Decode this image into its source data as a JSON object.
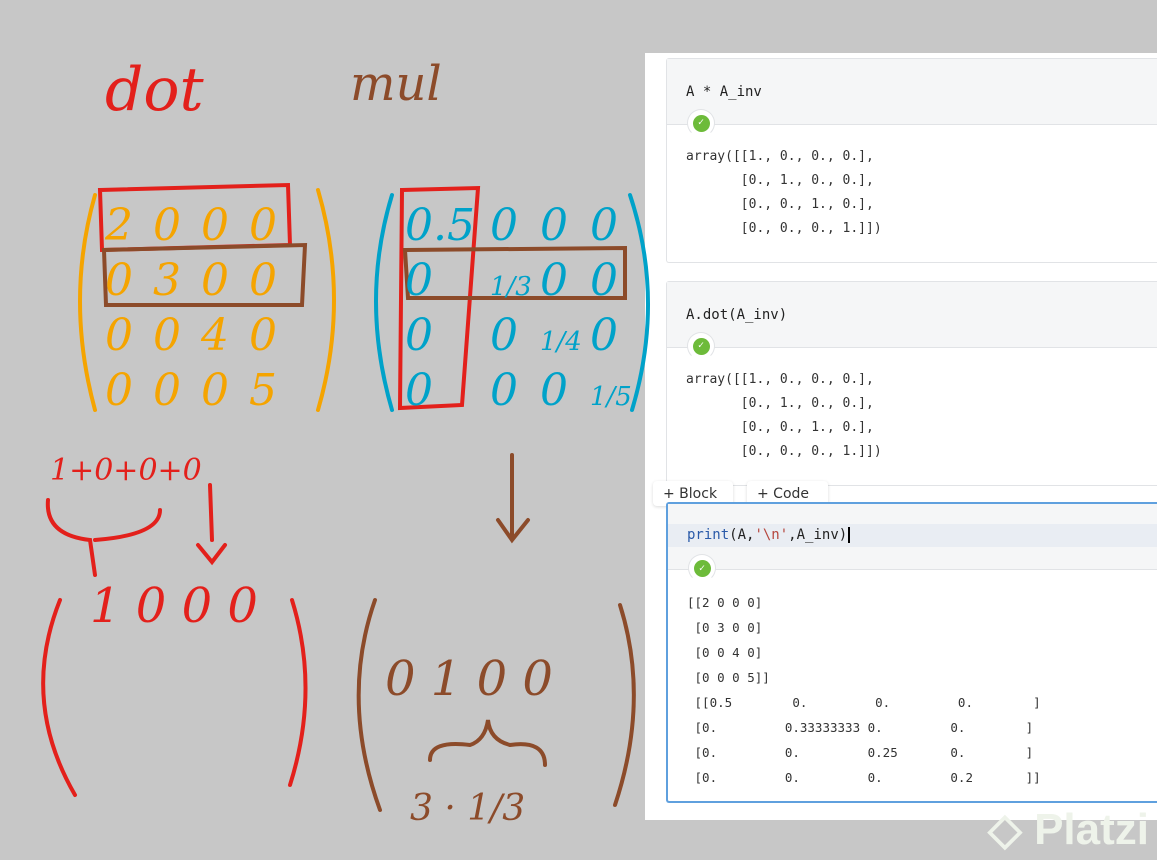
{
  "colors": {
    "red": "#e3201b",
    "orange": "#f5a400",
    "blue": "#00a2c9",
    "brown": "#8c4b2a",
    "check": "#6dbb3a",
    "active_border": "#5fa0de"
  },
  "handwriting": {
    "dot": "dot",
    "mul": "mul",
    "matrix_a": [
      [
        "2",
        "0",
        "0",
        "0"
      ],
      [
        "0",
        "3",
        "0",
        "0"
      ],
      [
        "0",
        "0",
        "4",
        "0"
      ],
      [
        "0",
        "0",
        "0",
        "5"
      ]
    ],
    "matrix_inv": [
      [
        "0.5",
        "0",
        "0",
        "0"
      ],
      [
        "0",
        "1/3",
        "0",
        "0"
      ],
      [
        "0",
        "0",
        "1/4",
        "0"
      ],
      [
        "0",
        "0",
        "0",
        "1/5"
      ]
    ],
    "sum": "1+0+0+0",
    "result_dot": "1 0 0 0",
    "result_mul": "0 1 0 0",
    "result_mul_note": "3 · 1/3"
  },
  "notebook": {
    "cells": [
      {
        "code": "A * A_inv",
        "output": "array([[1., 0., 0., 0.],\n       [0., 1., 0., 0.],\n       [0., 0., 1., 0.],\n       [0., 0., 0., 1.]])"
      },
      {
        "code": "A.dot(A_inv)",
        "output": "array([[1., 0., 0., 0.],\n       [0., 1., 0., 0.],\n       [0., 0., 1., 0.],\n       [0., 0., 0., 1.]])"
      },
      {
        "code_fn": "print",
        "code_open": "(",
        "code_a": "A,",
        "code_str": "'\\n'",
        "code_rest": ",A_inv",
        "code_close": ")",
        "output": "[[2 0 0 0]\n [0 3 0 0]\n [0 0 4 0]\n [0 0 0 5]]\n [[0.5        0.         0.         0.        ]\n [0.         0.33333333 0.         0.        ]\n [0.         0.         0.25       0.        ]\n [0.         0.         0.         0.2       ]]"
      }
    ],
    "add_block": "+ Block",
    "add_code": "+ Code",
    "watermark": "Platzi"
  }
}
